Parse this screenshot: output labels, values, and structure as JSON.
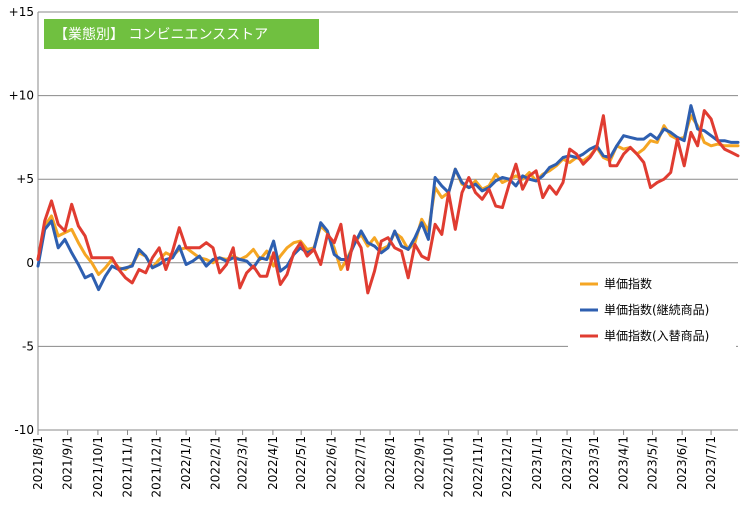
{
  "chart_data": {
    "type": "line",
    "title": "【業態別】 コンビニエンスストア",
    "xlabel": "",
    "ylabel": "",
    "ylim": [
      -10,
      15
    ],
    "y_ticks": [
      "-10",
      "-5",
      "0",
      "+5",
      "+10",
      "+15"
    ],
    "y_tick_values": [
      -10,
      -5,
      0,
      5,
      10,
      15
    ],
    "grid": true,
    "legend_position": "right-middle",
    "x_ticks": [
      "2021/8/1",
      "2021/9/1",
      "2021/10/1",
      "2021/11/1",
      "2021/12/1",
      "2022/1/1",
      "2022/2/1",
      "2022/3/1",
      "2022/4/1",
      "2022/5/1",
      "2022/6/1",
      "2022/7/1",
      "2022/8/1",
      "2022/9/1",
      "2022/10/1",
      "2022/11/1",
      "2022/12/1",
      "2023/1/1",
      "2023/2/1",
      "2023/3/1",
      "2023/4/1",
      "2023/5/1",
      "2023/6/1",
      "2023/7/1"
    ],
    "x_tick_week_index": [
      0,
      4.4,
      8.9,
      13.3,
      17.6,
      22,
      26.4,
      30.4,
      34.9,
      39.1,
      43.6,
      47.9,
      52.3,
      56.7,
      61,
      65.4,
      69.7,
      74.1,
      78.6,
      82.6,
      87,
      91.3,
      95.7,
      100
    ],
    "x": [
      0,
      1,
      2,
      3,
      4,
      5,
      6,
      7,
      8,
      9,
      10,
      11,
      12,
      13,
      14,
      15,
      16,
      17,
      18,
      19,
      20,
      21,
      22,
      23,
      24,
      25,
      26,
      27,
      28,
      29,
      30,
      31,
      32,
      33,
      34,
      35,
      36,
      37,
      38,
      39,
      40,
      41,
      42,
      43,
      44,
      45,
      46,
      47,
      48,
      49,
      50,
      51,
      52,
      53,
      54,
      55,
      56,
      57,
      58,
      59,
      60,
      61,
      62,
      63,
      64,
      65,
      66,
      67,
      68,
      69,
      70,
      71,
      72,
      73,
      74,
      75,
      76,
      77,
      78,
      79,
      80,
      81,
      82,
      83,
      84,
      85,
      86,
      87,
      88,
      89,
      90,
      91,
      92,
      93,
      94,
      95,
      96,
      97,
      98,
      99,
      100,
      101,
      102,
      103,
      104
    ],
    "series": [
      {
        "name": "単価指数",
        "color": "#f5a623",
        "values": [
          0.2,
          2.2,
          2.8,
          1.6,
          1.8,
          2.0,
          1.2,
          0.5,
          0.0,
          -0.7,
          -0.3,
          0.2,
          -0.3,
          -0.4,
          -0.1,
          0.6,
          0.4,
          -0.3,
          0.2,
          0.6,
          0.4,
          0.8,
          0.9,
          0.6,
          0.3,
          0.2,
          0.0,
          0.3,
          0.2,
          0.4,
          0.2,
          0.4,
          0.8,
          0.2,
          0.7,
          -0.2,
          0.4,
          0.9,
          1.2,
          1.3,
          0.8,
          0.9,
          2.2,
          1.8,
          0.9,
          -0.4,
          0.3,
          1.2,
          1.7,
          1.0,
          1.5,
          0.8,
          1.0,
          1.8,
          1.5,
          0.8,
          1.2,
          2.6,
          1.9,
          4.5,
          3.9,
          4.2,
          5.6,
          4.7,
          4.5,
          4.9,
          4.4,
          4.6,
          5.3,
          4.8,
          5.0,
          5.2,
          5.0,
          5.4,
          4.9,
          5.3,
          5.5,
          5.8,
          6.2,
          6.0,
          6.3,
          6.1,
          6.4,
          6.9,
          6.3,
          6.1,
          7.0,
          6.8,
          6.9,
          6.5,
          6.8,
          7.3,
          7.2,
          8.2,
          7.6,
          7.4,
          7.5,
          8.8,
          8.2,
          7.2,
          7.0,
          7.1,
          7.0,
          7.0,
          7.0
        ]
      },
      {
        "name": "単価指数(継続商品)",
        "color": "#2e5fb0",
        "values": [
          -0.2,
          2.0,
          2.5,
          0.9,
          1.4,
          0.6,
          -0.1,
          -0.9,
          -0.7,
          -1.6,
          -0.8,
          -0.2,
          -0.4,
          -0.3,
          -0.2,
          0.8,
          0.4,
          -0.3,
          -0.1,
          0.2,
          0.3,
          1.0,
          -0.1,
          0.1,
          0.4,
          -0.2,
          0.2,
          0.3,
          0.1,
          0.3,
          0.2,
          0.1,
          -0.3,
          0.3,
          0.2,
          1.3,
          -0.5,
          -0.2,
          0.5,
          0.9,
          0.6,
          0.8,
          2.4,
          1.9,
          0.5,
          0.2,
          0.2,
          1.1,
          1.9,
          1.2,
          1.0,
          0.6,
          0.9,
          1.9,
          1.0,
          0.8,
          1.5,
          2.4,
          1.4,
          5.1,
          4.6,
          4.2,
          5.6,
          4.8,
          4.5,
          4.7,
          4.3,
          4.5,
          4.9,
          5.1,
          5.0,
          4.6,
          5.2,
          5.0,
          4.9,
          5.2,
          5.7,
          5.9,
          6.3,
          6.4,
          6.3,
          6.5,
          6.8,
          7.0,
          6.4,
          6.3,
          7.0,
          7.6,
          7.5,
          7.4,
          7.4,
          7.7,
          7.4,
          8.0,
          7.8,
          7.5,
          7.3,
          9.4,
          8.0,
          7.9,
          7.6,
          7.3,
          7.3,
          7.2,
          7.2
        ]
      },
      {
        "name": "単価指数(入替商品)",
        "color": "#e03c31",
        "values": [
          0.2,
          2.5,
          3.7,
          2.3,
          1.9,
          3.5,
          2.2,
          1.6,
          0.3,
          0.3,
          0.3,
          0.3,
          -0.4,
          -0.9,
          -1.2,
          -0.4,
          -0.6,
          0.3,
          0.9,
          -0.4,
          0.7,
          2.1,
          0.9,
          0.9,
          0.9,
          1.2,
          0.9,
          -0.6,
          -0.1,
          0.9,
          -1.5,
          -0.6,
          -0.2,
          -0.8,
          -0.8,
          0.6,
          -1.3,
          -0.7,
          0.6,
          1.2,
          0.4,
          0.8,
          -0.1,
          1.7,
          1.2,
          2.3,
          -0.4,
          1.6,
          0.9,
          -1.8,
          -0.5,
          1.3,
          1.5,
          0.9,
          0.7,
          -0.9,
          1.1,
          0.4,
          0.2,
          2.3,
          1.7,
          4.2,
          2.0,
          4.2,
          5.1,
          4.2,
          3.8,
          4.4,
          3.4,
          3.3,
          4.7,
          5.9,
          4.4,
          5.2,
          5.5,
          3.9,
          4.6,
          4.1,
          4.8,
          6.8,
          6.5,
          5.9,
          6.3,
          6.9,
          8.8,
          5.8,
          5.8,
          6.5,
          6.9,
          6.5,
          6.0,
          4.5,
          4.8,
          5.0,
          5.4,
          7.4,
          5.8,
          7.8,
          7.0,
          9.1,
          8.6,
          7.3,
          6.8,
          6.6,
          6.4
        ]
      }
    ]
  }
}
